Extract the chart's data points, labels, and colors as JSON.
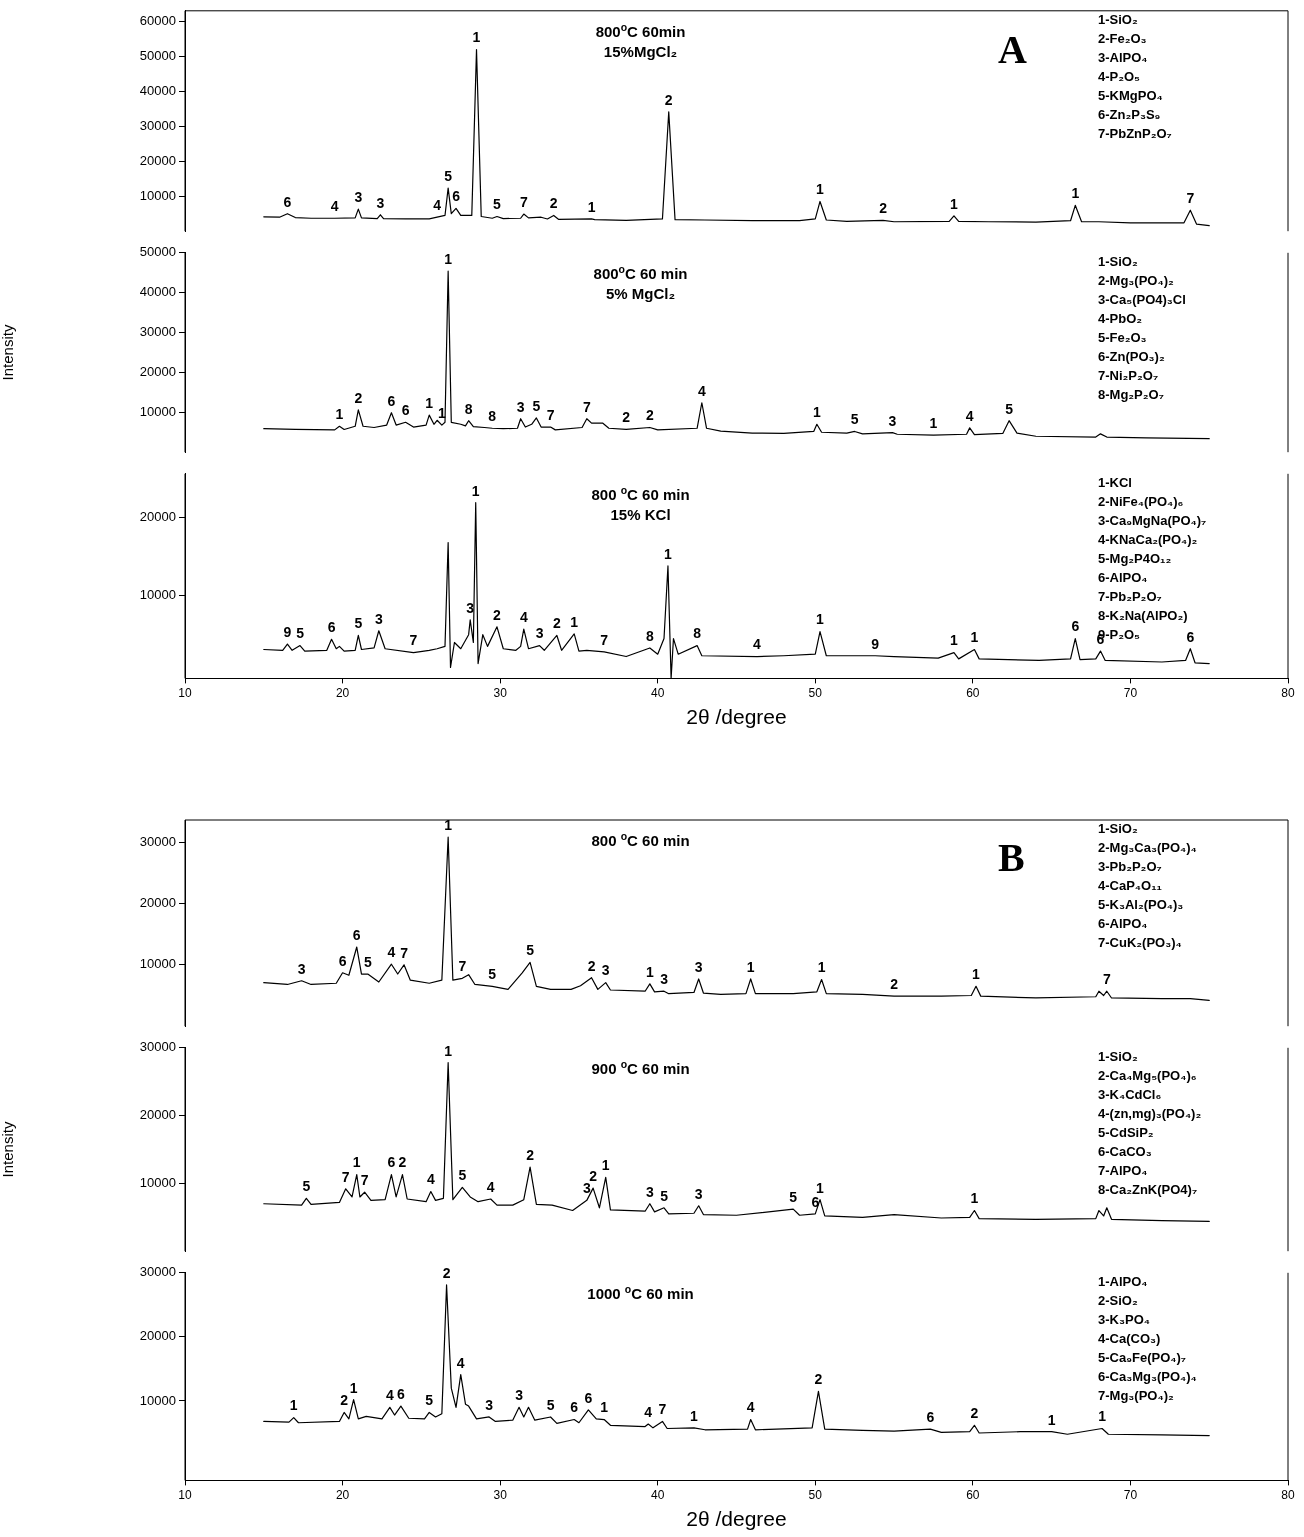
{
  "chart_data": [
    {
      "type": "line",
      "title": "A",
      "subtitle": "800$^{o}$C 60min\n15%MgCl₂",
      "color": "#000000",
      "xlim": [
        10,
        80
      ],
      "xticks": [
        10,
        20,
        30,
        40,
        50,
        60,
        70,
        80
      ],
      "ylim": [
        0,
        63000
      ],
      "yticks": [
        10000,
        20000,
        30000,
        40000,
        50000,
        60000
      ],
      "tick_labels": "y",
      "x": [
        15,
        16,
        16.5,
        17,
        18,
        19.5,
        20.8,
        21,
        21.2,
        22.2,
        22.4,
        22.6,
        24,
        25.5,
        26,
        26.5,
        26.7,
        26.9,
        27.2,
        27.5,
        28.2,
        28.5,
        28.8,
        29.5,
        29.8,
        30.2,
        31.3,
        31.5,
        31.8,
        32.6,
        33,
        33.4,
        33.7,
        35.8,
        36,
        38,
        40.3,
        40.7,
        41.1,
        43,
        46,
        49,
        50,
        50.3,
        50.7,
        52,
        54.3,
        55,
        58.5,
        58.8,
        59.1,
        61,
        64,
        66.2,
        66.5,
        66.9,
        68,
        70,
        73.4,
        73.8,
        74.2,
        75
      ],
      "values": [
        4100,
        4000,
        5000,
        3900,
        3700,
        3700,
        3800,
        6300,
        3800,
        3600,
        4700,
        3600,
        3500,
        3500,
        4000,
        4500,
        12300,
        5000,
        6500,
        4500,
        4500,
        51900,
        4200,
        3700,
        4200,
        3600,
        3700,
        4900,
        3800,
        4000,
        3500,
        4500,
        3400,
        3500,
        3300,
        3100,
        3500,
        34100,
        3300,
        3200,
        3000,
        3000,
        3500,
        8500,
        3200,
        2800,
        3100,
        2700,
        2800,
        4400,
        2800,
        2700,
        2600,
        3000,
        7400,
        2700,
        2700,
        2400,
        2400,
        6000,
        2000,
        1600
      ],
      "annotations": [
        "1-SiO₂",
        "2-Fe₂O₃",
        "3-AlPO₄",
        "4-P₂O₅",
        "5-KMgPO₄",
        "6-Zn₂P₃S₉",
        "7-PbZnP₂O₇",
        {
          "text": "6",
          "x": 16.5,
          "y": 5000
        },
        {
          "text": "4",
          "x": 19.5,
          "y": 3700
        },
        {
          "text": "3",
          "x": 21,
          "y": 6300
        },
        {
          "text": "3",
          "x": 22.4,
          "y": 4700
        },
        {
          "text": "4",
          "x": 26,
          "y": 4000
        },
        {
          "text": "5",
          "x": 26.7,
          "y": 12300
        },
        {
          "text": "6",
          "x": 27.2,
          "y": 6500
        },
        {
          "text": "1",
          "x": 28.5,
          "y": 51900
        },
        {
          "text": "5",
          "x": 29.8,
          "y": 4200
        },
        {
          "text": "7",
          "x": 31.5,
          "y": 4900
        },
        {
          "text": "2",
          "x": 33.4,
          "y": 4500
        },
        {
          "text": "1",
          "x": 35.8,
          "y": 3500
        },
        {
          "text": "2",
          "x": 40.7,
          "y": 34100
        },
        {
          "text": "1",
          "x": 50.3,
          "y": 8500
        },
        {
          "text": "2",
          "x": 54.3,
          "y": 3100
        },
        {
          "text": "1",
          "x": 58.8,
          "y": 4400
        },
        {
          "text": "1",
          "x": 66.5,
          "y": 7400
        },
        {
          "text": "7",
          "x": 73.8,
          "y": 6000
        }
      ]
    },
    {
      "type": "line",
      "subtitle": "800$^{o}$C 60 min\n5% MgCl₂",
      "color": "#000000",
      "xlim": [
        10,
        80
      ],
      "xticks": [
        10,
        20,
        30,
        40,
        50,
        60,
        70,
        80
      ],
      "ylim": [
        0,
        50000
      ],
      "yticks": [
        10000,
        20000,
        30000,
        40000,
        50000
      ],
      "tick_labels": "y",
      "ylabel": "Intensity",
      "x": [
        15,
        17,
        19.5,
        19.8,
        20.1,
        20.8,
        21,
        21.3,
        22,
        22.8,
        23.1,
        23.4,
        24,
        24.5,
        25.3,
        25.5,
        25.8,
        26,
        26.3,
        26.5,
        26.7,
        26.9,
        27.5,
        27.8,
        28,
        28.3,
        29,
        29.5,
        30.2,
        31.1,
        31.3,
        31.6,
        32,
        32.3,
        32.6,
        33.2,
        33.5,
        35.2,
        35.5,
        35.8,
        36.5,
        36.9,
        38,
        39.5,
        40,
        42.5,
        42.8,
        43.1,
        44,
        46,
        48,
        49.9,
        50.1,
        50.4,
        52,
        52.5,
        53,
        54.9,
        55.2,
        57.5,
        59.6,
        59.8,
        60.1,
        61.9,
        62.3,
        62.8,
        64,
        67.8,
        68.1,
        68.5,
        71,
        75
      ],
      "values": [
        5900,
        5700,
        5600,
        6500,
        5700,
        6500,
        10600,
        6500,
        6200,
        6800,
        9900,
        6800,
        7500,
        6300,
        6800,
        9300,
        7000,
        8000,
        6800,
        7500,
        45400,
        7500,
        7000,
        6600,
        7900,
        6400,
        6200,
        6000,
        5900,
        6000,
        8400,
        6300,
        7000,
        8600,
        6300,
        6300,
        5600,
        6200,
        8400,
        7300,
        7300,
        6000,
        5700,
        6200,
        5600,
        6000,
        12400,
        6000,
        5300,
        4800,
        4700,
        5200,
        7000,
        5000,
        4800,
        5200,
        4600,
        4900,
        4500,
        4300,
        4500,
        6100,
        4400,
        4700,
        7900,
        4800,
        4000,
        3800,
        4600,
        3800,
        3600,
        3400
      ],
      "annotations": [
        "1-SiO₂",
        "2-Mg₃(PO₄)₂",
        "3-Ca₅(PO4)₃Cl",
        "4-PbO₂",
        "5-Fe₂O₃",
        "6-Zn(PO₃)₂",
        "7-Ni₂P₂O₇",
        "8-Mg₂P₂O₇",
        {
          "text": "1",
          "x": 19.8,
          "y": 6500
        },
        {
          "text": "2",
          "x": 21,
          "y": 10600
        },
        {
          "text": "6",
          "x": 23.1,
          "y": 9900
        },
        {
          "text": "6",
          "x": 24,
          "y": 7500
        },
        {
          "text": "1",
          "x": 25.5,
          "y": 9300
        },
        {
          "text": "1",
          "x": 26.3,
          "y": 6800
        },
        {
          "text": "1",
          "x": 26.7,
          "y": 45400
        },
        {
          "text": "8",
          "x": 28,
          "y": 7900
        },
        {
          "text": "8",
          "x": 29.5,
          "y": 6000
        },
        {
          "text": "3",
          "x": 31.3,
          "y": 8400
        },
        {
          "text": "5",
          "x": 32.3,
          "y": 8600
        },
        {
          "text": "7",
          "x": 33.2,
          "y": 6300
        },
        {
          "text": "7",
          "x": 35.5,
          "y": 8400
        },
        {
          "text": "2",
          "x": 38,
          "y": 5700
        },
        {
          "text": "2",
          "x": 39.5,
          "y": 6200
        },
        {
          "text": "4",
          "x": 42.8,
          "y": 12400
        },
        {
          "text": "1",
          "x": 50.1,
          "y": 7000
        },
        {
          "text": "5",
          "x": 52.5,
          "y": 5200
        },
        {
          "text": "3",
          "x": 54.9,
          "y": 4900
        },
        {
          "text": "1",
          "x": 57.5,
          "y": 4300
        },
        {
          "text": "4",
          "x": 59.8,
          "y": 6100
        },
        {
          "text": "5",
          "x": 62.3,
          "y": 7900
        }
      ]
    },
    {
      "type": "line",
      "subtitle": "800 $^{o}$C 60 min\n15% KCl",
      "color": "#000000",
      "xlim": [
        10,
        80
      ],
      "xticks": [
        10,
        20,
        30,
        40,
        50,
        60,
        70,
        80
      ],
      "ylim": [
        -600,
        25600
      ],
      "yticks": [
        10000,
        20000
      ],
      "xlabel": "2θ /degree",
      "x": [
        15,
        16.2,
        16.5,
        16.8,
        17.3,
        17.6,
        19,
        19.3,
        19.6,
        19.8,
        20.1,
        20.8,
        21,
        21.2,
        22,
        22.3,
        22.7,
        24.5,
        25.5,
        26,
        26.5,
        26.7,
        26.85,
        27.1,
        27.5,
        28,
        28.1,
        28.3,
        28.45,
        28.6,
        28.9,
        29.2,
        29.8,
        30.2,
        31,
        31.3,
        31.5,
        31.8,
        32.5,
        32.8,
        33.6,
        33.9,
        34.7,
        35,
        35.5,
        36.6,
        38,
        39.5,
        40,
        40.4,
        40.65,
        40.85,
        41,
        41.3,
        42.5,
        42.8,
        46.3,
        48,
        50,
        50.3,
        50.7,
        53.8,
        55,
        57.8,
        58.8,
        59.1,
        60.1,
        60.4,
        64.2,
        66.2,
        66.5,
        66.8,
        67.8,
        68.1,
        68.4,
        72,
        73.5,
        73.8,
        74.1,
        75
      ],
      "values": [
        3100,
        3000,
        3800,
        3000,
        3600,
        2900,
        3000,
        4400,
        3200,
        3500,
        2900,
        3000,
        4900,
        3100,
        3300,
        5500,
        3200,
        2700,
        3000,
        3200,
        3500,
        16800,
        800,
        4000,
        3200,
        5000,
        6900,
        4000,
        21900,
        1300,
        5000,
        3500,
        6000,
        3200,
        3000,
        3500,
        5700,
        3200,
        3600,
        3000,
        4900,
        3000,
        5100,
        2900,
        3000,
        2800,
        2200,
        3300,
        2500,
        4500,
        13800,
        -600,
        4500,
        2500,
        3600,
        2300,
        2200,
        2300,
        2500,
        5400,
        2300,
        2300,
        2200,
        2000,
        2700,
        1900,
        3100,
        1900,
        1700,
        1900,
        4500,
        1800,
        1900,
        2900,
        1700,
        1500,
        1700,
        3200,
        1400,
        1300
      ],
      "annotations": [
        "1-KCl",
        "2-NiFe₄(PO₄)₆",
        "3-Ca₉MgNa(PO₄)₇",
        "4-KNaCa₂(PO₄)₂",
        "5-Mg₂P4O₁₂",
        "6-AlPO₄",
        "7-Pb₂P₂O₇",
        "8-K₂Na(AlPO₂)",
        "9-P₂O₅",
        {
          "text": "9",
          "x": 16.5,
          "y": 3800
        },
        {
          "text": "5",
          "x": 17.3,
          "y": 3600
        },
        {
          "text": "6",
          "x": 19.3,
          "y": 4400
        },
        {
          "text": "5",
          "x": 21,
          "y": 4900
        },
        {
          "text": "3",
          "x": 22.3,
          "y": 5500
        },
        {
          "text": "7",
          "x": 24.5,
          "y": 2700
        },
        {
          "text": "3",
          "x": 28.1,
          "y": 6900
        },
        {
          "text": "1",
          "x": 28.45,
          "y": 21900
        },
        {
          "text": "2",
          "x": 29.8,
          "y": 6000
        },
        {
          "text": "4",
          "x": 31.5,
          "y": 5700
        },
        {
          "text": "3",
          "x": 32.5,
          "y": 3600
        },
        {
          "text": "2",
          "x": 33.6,
          "y": 4900
        },
        {
          "text": "1",
          "x": 34.7,
          "y": 5100
        },
        {
          "text": "7",
          "x": 36.6,
          "y": 2800
        },
        {
          "text": "8",
          "x": 39.5,
          "y": 3300
        },
        {
          "text": "1",
          "x": 40.65,
          "y": 13800
        },
        {
          "text": "8",
          "x": 42.5,
          "y": 3600
        },
        {
          "text": "4",
          "x": 46.3,
          "y": 2200
        },
        {
          "text": "1",
          "x": 50.3,
          "y": 5400
        },
        {
          "text": "9",
          "x": 53.8,
          "y": 2300
        },
        {
          "text": "1",
          "x": 58.8,
          "y": 2700
        },
        {
          "text": "1",
          "x": 60.1,
          "y": 3100
        },
        {
          "text": "6",
          "x": 66.5,
          "y": 4500
        },
        {
          "text": "6",
          "x": 68.1,
          "y": 2900
        },
        {
          "text": "6",
          "x": 73.8,
          "y": 3200
        }
      ]
    },
    {
      "type": "line",
      "title": "B",
      "subtitle": "800 $^{o}$C 60 min",
      "color": "#000000",
      "xlim": [
        10,
        80
      ],
      "xticks": [
        10,
        20,
        30,
        40,
        50,
        60,
        70,
        80
      ],
      "ylim": [
        0,
        33600
      ],
      "yticks": [
        10000,
        20000,
        30000
      ],
      "tick_labels": "y",
      "x": [
        15,
        16.5,
        17.4,
        18,
        19.6,
        20,
        20.4,
        20.9,
        21.2,
        21.6,
        22.3,
        23.1,
        23.5,
        23.9,
        24.3,
        25.5,
        26.3,
        26.7,
        27,
        27.6,
        28,
        28.4,
        29.5,
        30.5,
        31.4,
        31.9,
        32.3,
        33.2,
        34.5,
        35.1,
        35.8,
        36.2,
        36.7,
        37,
        39.2,
        39.5,
        39.8,
        40.4,
        40.7,
        42.3,
        42.6,
        42.9,
        44,
        45.6,
        45.9,
        46.2,
        48.6,
        50.1,
        50.4,
        50.7,
        53,
        55,
        58,
        59.9,
        60.2,
        60.5,
        64,
        67.8,
        68,
        68.3,
        68.5,
        68.8,
        72,
        73.8,
        75
      ],
      "values": [
        7100,
        6800,
        7400,
        6800,
        7000,
        8700,
        8300,
        12900,
        8500,
        8500,
        7200,
        10100,
        8500,
        10000,
        7500,
        7000,
        7500,
        30800,
        7500,
        7800,
        8400,
        6800,
        6500,
        6000,
        8700,
        10400,
        6500,
        6000,
        6000,
        6600,
        7900,
        6000,
        7100,
        5900,
        5700,
        6900,
        5600,
        5700,
        5300,
        5500,
        7700,
        5400,
        5200,
        5300,
        7700,
        5300,
        5300,
        5600,
        7600,
        5300,
        5200,
        4900,
        4900,
        5000,
        6500,
        4900,
        4600,
        4800,
        5700,
        5000,
        5700,
        4600,
        4500,
        4500,
        4200
      ],
      "annotations": [
        "1-SiO₂",
        "2-Mg₃Ca₃(PO₄)₄",
        "3-Pb₂P₂O₇",
        "4-CaP₄O₁₁",
        "5-K₃Al₂(PO₄)₃",
        "6-AlPO₄",
        "7-CuK₂(PO₃)₄",
        {
          "text": "3",
          "x": 17.4,
          "y": 7400
        },
        {
          "text": "6",
          "x": 20,
          "y": 8700
        },
        {
          "text": "6",
          "x": 20.9,
          "y": 12900
        },
        {
          "text": "5",
          "x": 21.6,
          "y": 8500
        },
        {
          "text": "4",
          "x": 23.1,
          "y": 10100
        },
        {
          "text": "7",
          "x": 23.9,
          "y": 10000
        },
        {
          "text": "1",
          "x": 26.7,
          "y": 30800
        },
        {
          "text": "7",
          "x": 27.6,
          "y": 7800
        },
        {
          "text": "5",
          "x": 29.5,
          "y": 6500
        },
        {
          "text": "5",
          "x": 31.9,
          "y": 10400
        },
        {
          "text": "2",
          "x": 35.8,
          "y": 7900
        },
        {
          "text": "3",
          "x": 36.7,
          "y": 7100
        },
        {
          "text": "1",
          "x": 39.5,
          "y": 6900
        },
        {
          "text": "3",
          "x": 40.4,
          "y": 5700
        },
        {
          "text": "3",
          "x": 42.6,
          "y": 7700
        },
        {
          "text": "1",
          "x": 45.9,
          "y": 7700
        },
        {
          "text": "1",
          "x": 50.4,
          "y": 7600
        },
        {
          "text": "2",
          "x": 55,
          "y": 4900
        },
        {
          "text": "1",
          "x": 60.2,
          "y": 6500
        },
        {
          "text": "7",
          "x": 68.5,
          "y": 5700
        }
      ]
    },
    {
      "type": "line",
      "subtitle": "900 $^{o}$C 60 min",
      "color": "#000000",
      "xlim": [
        10,
        80
      ],
      "xticks": [
        10,
        20,
        30,
        40,
        50,
        60,
        70,
        80
      ],
      "ylim": [
        0,
        30000
      ],
      "yticks": [
        10000,
        20000,
        30000
      ],
      "tick_labels": "y",
      "ylabel": "Intensity",
      "x": [
        15,
        17.4,
        17.7,
        18,
        19.8,
        20.2,
        20.6,
        20.9,
        21.1,
        21.4,
        21.8,
        22.7,
        23.1,
        23.4,
        23.8,
        24.1,
        25.3,
        25.6,
        25.9,
        26.4,
        26.7,
        27,
        27.6,
        28.1,
        28.6,
        29.4,
        29.8,
        30.8,
        31.5,
        31.9,
        32.3,
        33.3,
        34.6,
        35.5,
        35.9,
        36.3,
        36.7,
        37,
        39.2,
        39.5,
        39.8,
        40.4,
        40.7,
        42.3,
        42.6,
        42.9,
        45,
        48.6,
        49,
        50,
        50.3,
        50.6,
        53,
        55,
        58,
        59.8,
        60.1,
        60.4,
        64,
        67.8,
        68,
        68.3,
        68.5,
        68.8,
        72,
        75
      ],
      "values": [
        7000,
        6800,
        7800,
        6900,
        7200,
        9200,
        8000,
        11300,
        8000,
        8700,
        7500,
        7600,
        11300,
        8000,
        11300,
        7700,
        7300,
        8800,
        7500,
        7800,
        27800,
        7600,
        9400,
        8000,
        7300,
        7700,
        6800,
        6800,
        7600,
        12400,
        6900,
        6800,
        6000,
        7500,
        9300,
        6400,
        10900,
        6100,
        5900,
        7000,
        5800,
        6400,
        5500,
        5600,
        6700,
        5400,
        5300,
        6200,
        5300,
        5500,
        7600,
        5200,
        5000,
        5400,
        4900,
        5000,
        6000,
        4800,
        4700,
        4800,
        6000,
        5200,
        6400,
        4700,
        4500,
        4400
      ],
      "annotations": [
        "1-SiO₂",
        "2-Ca₄Mg₅(PO₄)₆",
        "3-K₄CdCl₆",
        "4-(zn,mg)₃(PO₄)₂",
        "5-CdSiP₂",
        "6-CaCO₃",
        "7-AlPO₄",
        "8-Ca₂ZnK(PO4)₇",
        {
          "text": "5",
          "x": 17.7,
          "y": 7800
        },
        {
          "text": "7",
          "x": 20.2,
          "y": 9200
        },
        {
          "text": "1",
          "x": 20.9,
          "y": 11300
        },
        {
          "text": "7",
          "x": 21.4,
          "y": 8700
        },
        {
          "text": "6",
          "x": 23.1,
          "y": 11300
        },
        {
          "text": "2",
          "x": 23.8,
          "y": 11300
        },
        {
          "text": "4",
          "x": 25.6,
          "y": 8800
        },
        {
          "text": "1",
          "x": 26.7,
          "y": 27800
        },
        {
          "text": "5",
          "x": 27.6,
          "y": 9400
        },
        {
          "text": "4",
          "x": 29.4,
          "y": 7700
        },
        {
          "text": "2",
          "x": 31.9,
          "y": 12400
        },
        {
          "text": "3",
          "x": 35.5,
          "y": 7500
        },
        {
          "text": "2",
          "x": 35.9,
          "y": 9300
        },
        {
          "text": "1",
          "x": 36.7,
          "y": 10900
        },
        {
          "text": "3",
          "x": 39.5,
          "y": 7000
        },
        {
          "text": "5",
          "x": 40.4,
          "y": 6400
        },
        {
          "text": "3",
          "x": 42.6,
          "y": 6700
        },
        {
          "text": "5",
          "x": 48.6,
          "y": 6200
        },
        {
          "text": "6",
          "x": 50,
          "y": 5500
        },
        {
          "text": "1",
          "x": 50.3,
          "y": 7600
        },
        {
          "text": "1",
          "x": 60.1,
          "y": 6000
        }
      ]
    },
    {
      "type": "line",
      "subtitle": "1000 $^{o}$C 60 min",
      "color": "#000000",
      "xlim": [
        10,
        80
      ],
      "xticks": [
        10,
        20,
        30,
        40,
        50,
        60,
        70,
        80
      ],
      "ylim": [
        -2400,
        30000
      ],
      "yticks": [
        10000,
        20000,
        30000
      ],
      "xlabel": "2θ /degree",
      "x": [
        15,
        16.6,
        16.9,
        17.2,
        19.8,
        20.1,
        20.4,
        20.7,
        21,
        21.5,
        22.5,
        23,
        23.3,
        23.7,
        24.2,
        25.2,
        25.5,
        25.9,
        26.3,
        26.6,
        26.9,
        27.2,
        27.5,
        27.8,
        28,
        28.5,
        29.3,
        29.7,
        30.8,
        31.2,
        31.5,
        31.8,
        32.2,
        33.2,
        33.6,
        34.7,
        35,
        35.6,
        36.1,
        36.6,
        37,
        39.2,
        39.4,
        39.7,
        40.3,
        40.6,
        42.3,
        43,
        45.7,
        45.9,
        46.2,
        49.8,
        50.2,
        50.6,
        53,
        55,
        57.3,
        58,
        59.8,
        60.1,
        60.4,
        63,
        65,
        66,
        68.2,
        68.6,
        72,
        75
      ],
      "values": [
        6800,
        6700,
        7400,
        6600,
        6800,
        8200,
        7200,
        10200,
        7200,
        7600,
        7200,
        9000,
        7800,
        9200,
        7300,
        7200,
        8200,
        7500,
        8000,
        28100,
        12000,
        9000,
        14100,
        9500,
        9200,
        7200,
        7500,
        6800,
        7000,
        9000,
        7500,
        9000,
        7000,
        7500,
        6500,
        7100,
        6600,
        8600,
        7200,
        7100,
        6200,
        6000,
        6400,
        5800,
        6800,
        5700,
        5800,
        5500,
        5600,
        7100,
        5500,
        5800,
        11500,
        5600,
        5400,
        5300,
        5600,
        5100,
        5200,
        6200,
        5000,
        5200,
        5200,
        4800,
        5700,
        4800,
        4700,
        4600
      ],
      "annotations": [
        "1-AlPO₄",
        "2-SiO₂",
        "3-K₃PO₄",
        "4-Ca(CO₃)",
        "5-Ca₉Fe(PO₄)₇",
        "6-Ca₃Mg₃(PO₄)₄",
        "7-Mg₃(PO₄)₂",
        {
          "text": "1",
          "x": 16.9,
          "y": 7400
        },
        {
          "text": "2",
          "x": 20.1,
          "y": 8200
        },
        {
          "text": "1",
          "x": 20.7,
          "y": 10200
        },
        {
          "text": "4",
          "x": 23,
          "y": 9000
        },
        {
          "text": "6",
          "x": 23.7,
          "y": 9200
        },
        {
          "text": "5",
          "x": 25.5,
          "y": 8200
        },
        {
          "text": "2",
          "x": 26.6,
          "y": 28100
        },
        {
          "text": "4",
          "x": 27.5,
          "y": 14100
        },
        {
          "text": "3",
          "x": 29.3,
          "y": 7500
        },
        {
          "text": "3",
          "x": 31.2,
          "y": 9000
        },
        {
          "text": "5",
          "x": 33.2,
          "y": 7500
        },
        {
          "text": "6",
          "x": 34.7,
          "y": 7100
        },
        {
          "text": "6",
          "x": 35.6,
          "y": 8600
        },
        {
          "text": "1",
          "x": 36.6,
          "y": 7100
        },
        {
          "text": "4",
          "x": 39.4,
          "y": 6400
        },
        {
          "text": "7",
          "x": 40.3,
          "y": 6800
        },
        {
          "text": "1",
          "x": 42.3,
          "y": 5800
        },
        {
          "text": "4",
          "x": 45.9,
          "y": 7100
        },
        {
          "text": "2",
          "x": 50.2,
          "y": 11500
        },
        {
          "text": "6",
          "x": 57.3,
          "y": 5600
        },
        {
          "text": "2",
          "x": 60.1,
          "y": 6200
        },
        {
          "text": "1",
          "x": 65,
          "y": 5200
        },
        {
          "text": "1",
          "x": 68.2,
          "y": 5700
        }
      ]
    }
  ]
}
